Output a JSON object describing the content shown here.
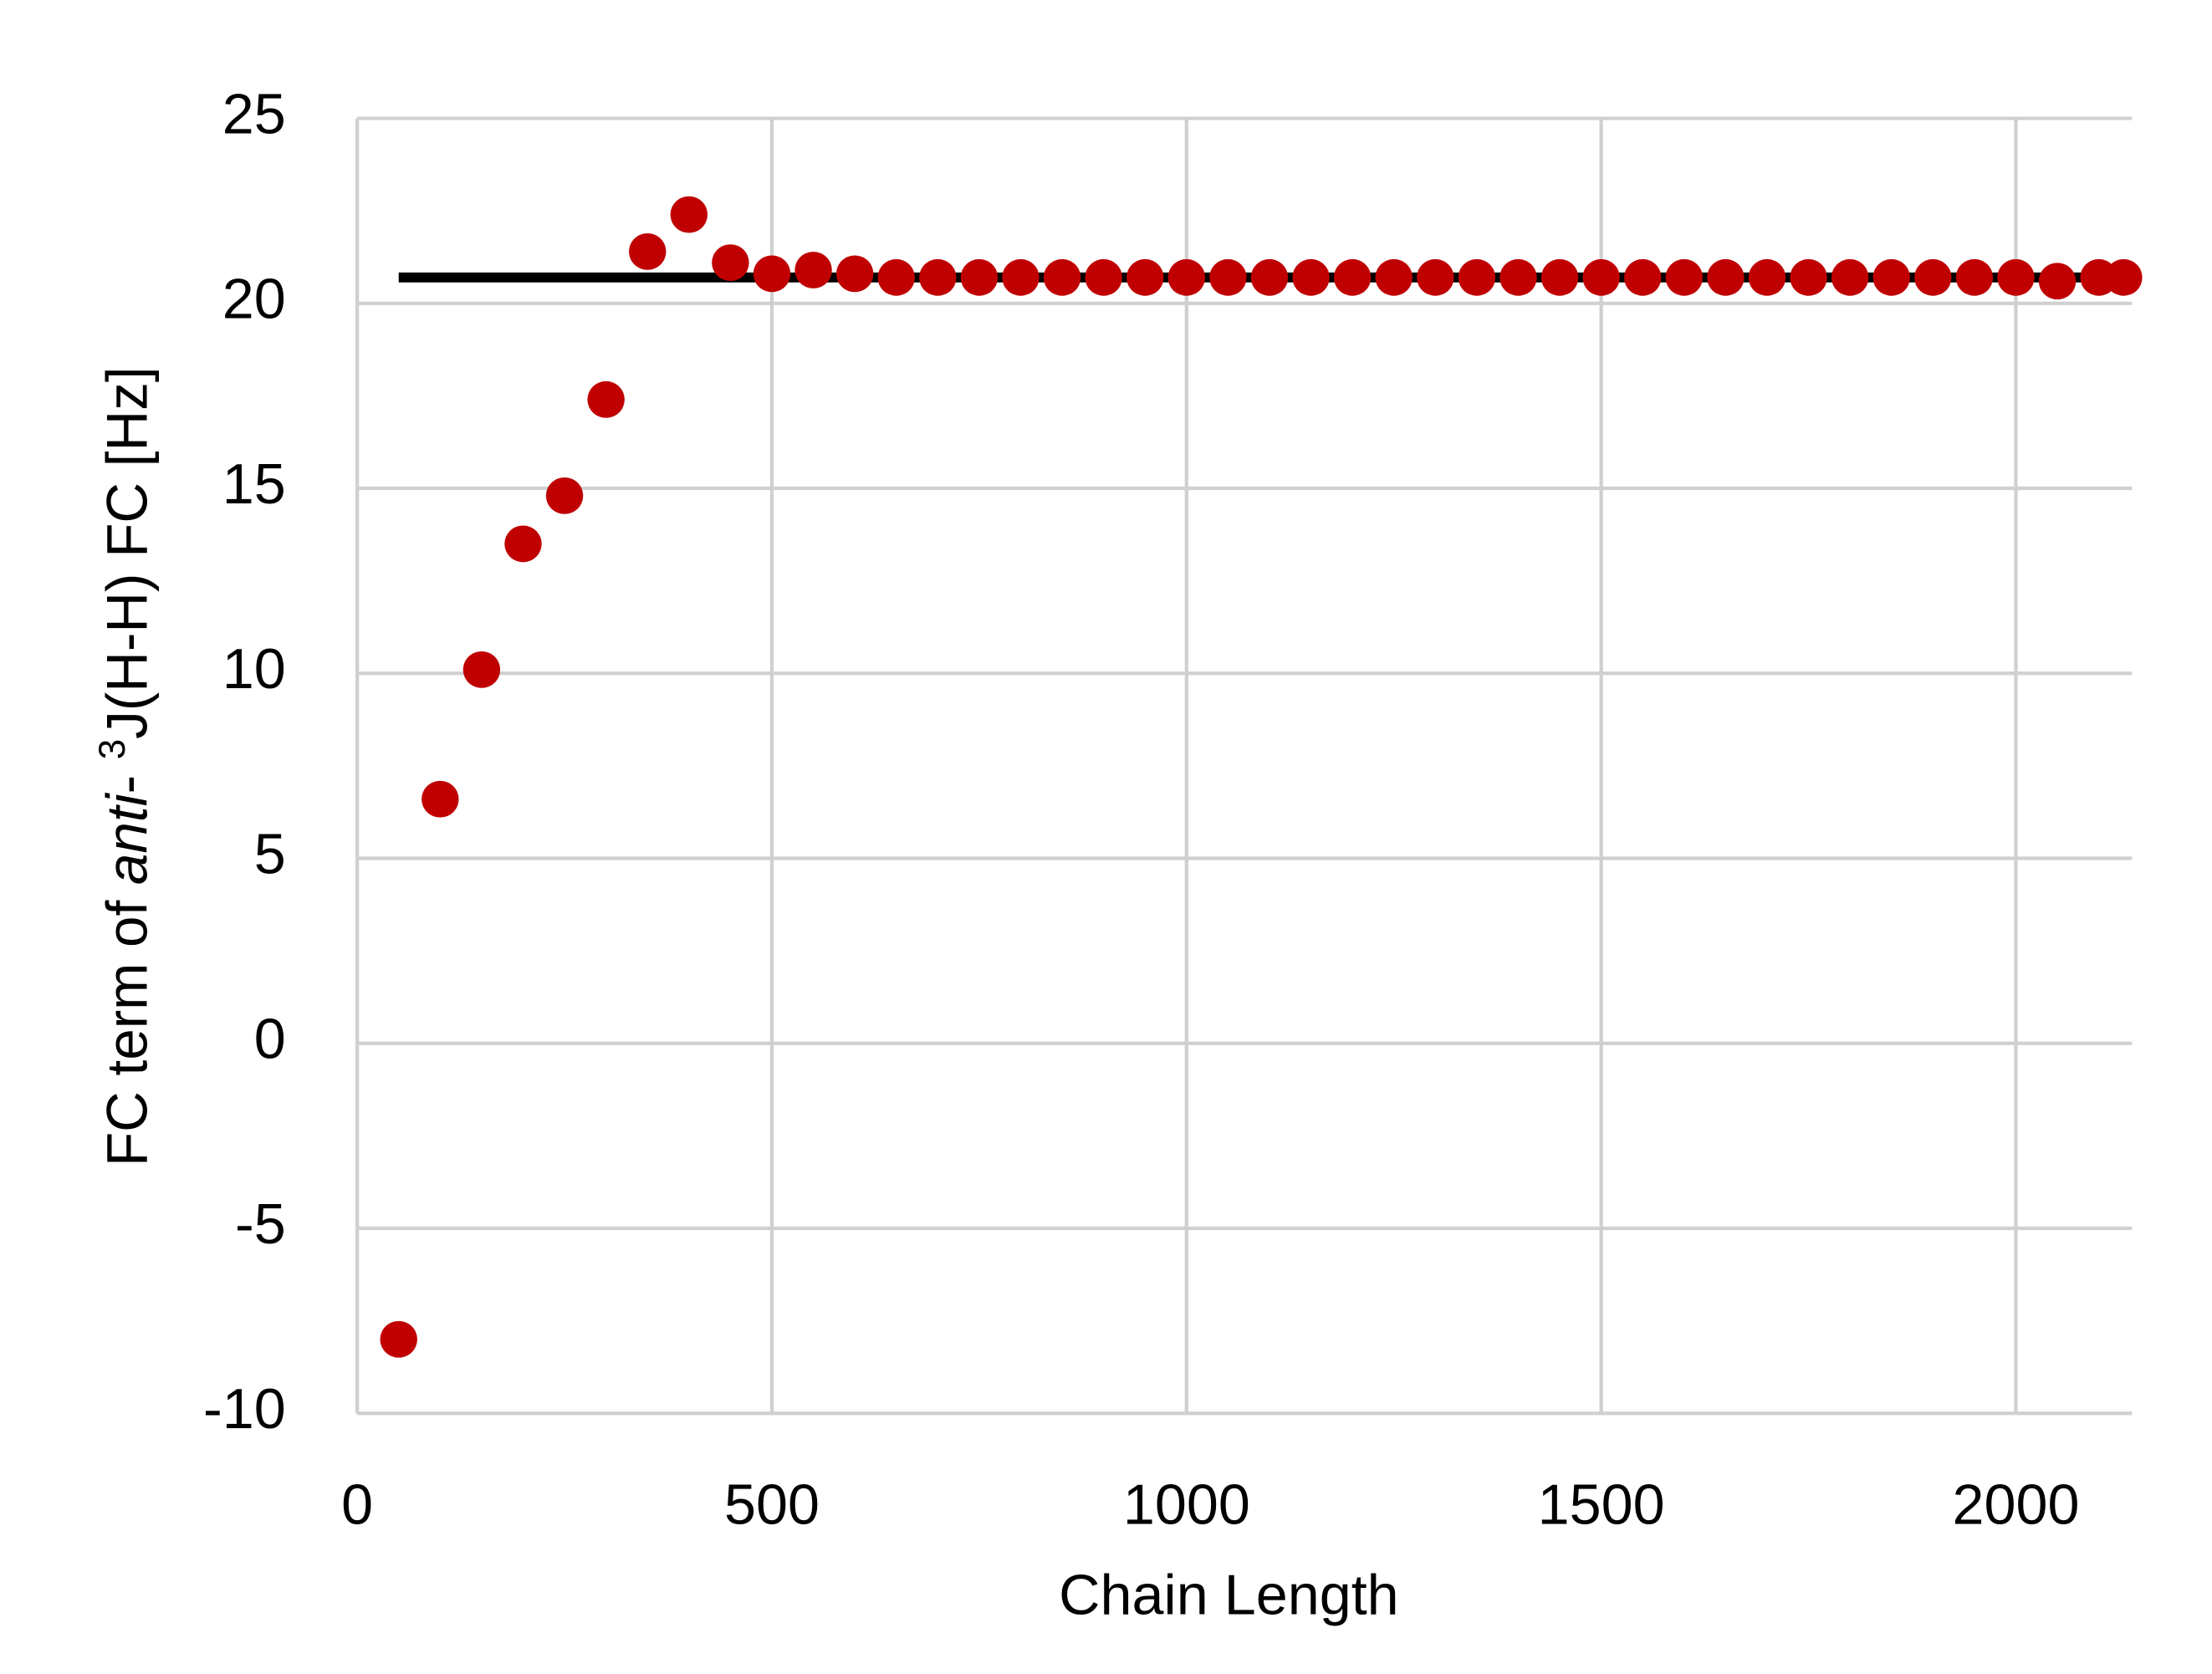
{
  "chart_data": {
    "type": "scatter",
    "x_label": "Chain Length",
    "y_label": [
      "FC term of ",
      "anti",
      "- ",
      "3",
      "J(H-H) FC [Hz]"
    ],
    "xlim": [
      0,
      2140
    ],
    "xticks": [
      0,
      500,
      1000,
      1500,
      2000
    ],
    "ylim": [
      -10,
      25
    ],
    "yticks": [
      -10,
      -5,
      0,
      5,
      10,
      15,
      20,
      25
    ],
    "grid": true,
    "series": [
      {
        "type": "line",
        "color": "#000000",
        "x": [
          50,
          2130
        ],
        "values": [
          20.7,
          20.7
        ]
      },
      {
        "type": "scatter",
        "color": "#c00000",
        "x": [
          50,
          100,
          150,
          200,
          250,
          300,
          350,
          400,
          450,
          500,
          550,
          600,
          650,
          700,
          750,
          800,
          850,
          900,
          950,
          1000,
          1050,
          1100,
          1150,
          1200,
          1250,
          1300,
          1350,
          1400,
          1450,
          1500,
          1550,
          1600,
          1650,
          1700,
          1750,
          1800,
          1850,
          1900,
          1950,
          2000,
          2050,
          2100,
          2130
        ],
        "values": [
          -8.0,
          6.6,
          10.1,
          13.5,
          14.8,
          17.4,
          21.4,
          22.4,
          21.1,
          20.8,
          20.9,
          20.8,
          20.7,
          20.7,
          20.7,
          20.7,
          20.7,
          20.7,
          20.7,
          20.7,
          20.7,
          20.7,
          20.7,
          20.7,
          20.7,
          20.7,
          20.7,
          20.7,
          20.7,
          20.7,
          20.7,
          20.7,
          20.7,
          20.7,
          20.7,
          20.7,
          20.7,
          20.7,
          20.7,
          20.7,
          20.6,
          20.7,
          20.7
        ]
      }
    ]
  }
}
